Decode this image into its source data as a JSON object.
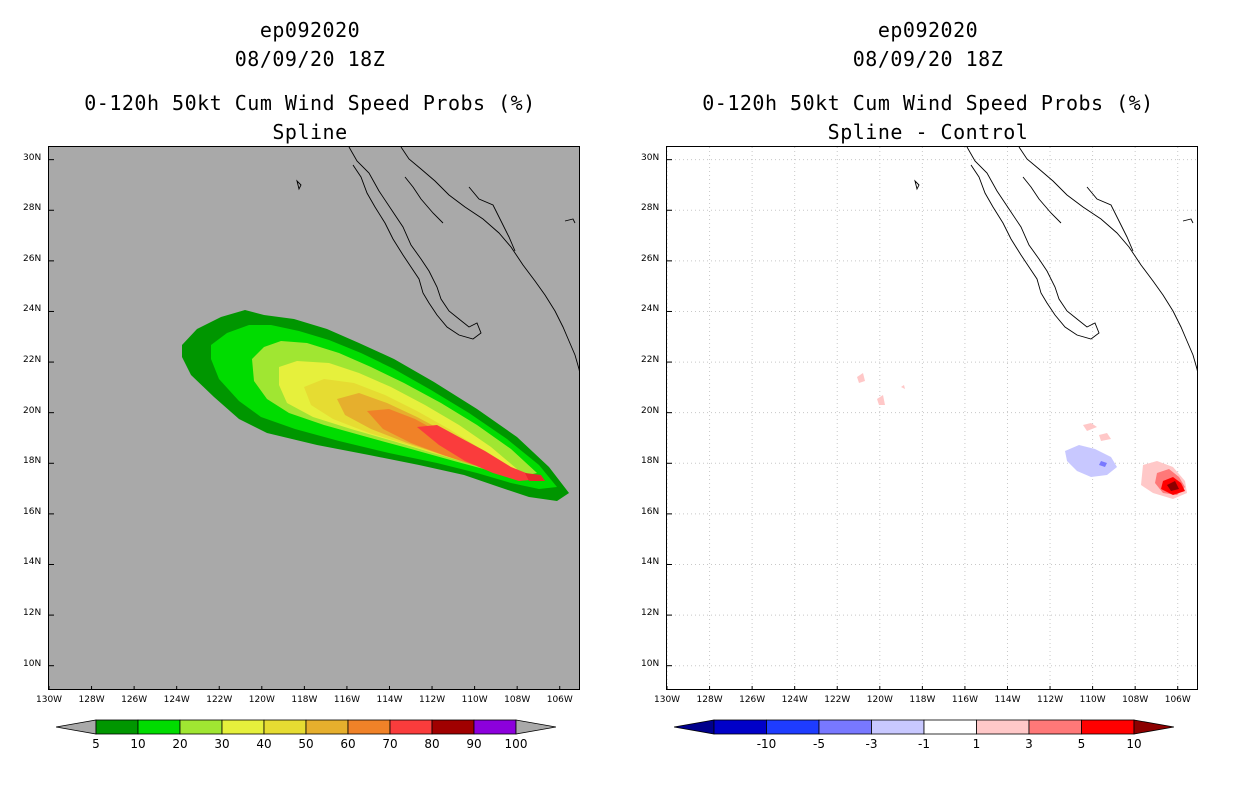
{
  "left": {
    "storm": "ep092020",
    "time": "08/09/20 18Z",
    "product": "0-120h 50kt Cum Wind Speed Probs (%)",
    "subtitle": "Spline",
    "background": "#a9a9a9",
    "legend": {
      "labels": [
        "5",
        "10",
        "20",
        "30",
        "40",
        "50",
        "60",
        "70",
        "80",
        "90",
        "100"
      ],
      "colors": [
        "#009600",
        "#00dc00",
        "#a0e632",
        "#e6f03c",
        "#e6dc32",
        "#e6af2d",
        "#f08228",
        "#fa3c3c",
        "#a00000",
        "#8c00dc"
      ],
      "end_color": "#a9a9a9"
    }
  },
  "right": {
    "storm": "ep092020",
    "time": "08/09/20 18Z",
    "product": "0-120h 50kt Cum Wind Speed Probs (%)",
    "subtitle": "Spline - Control",
    "background": "#ffffff",
    "legend": {
      "labels": [
        "-10",
        "-5",
        "-3",
        "-1",
        "1",
        "3",
        "5",
        "10"
      ],
      "colors": [
        "#0000c8",
        "#1e3cff",
        "#7878ff",
        "#c8c8ff",
        "#ffffff",
        "#ffc8c8",
        "#ff7878",
        "#ff0000"
      ],
      "low_color": "#00008c",
      "high_color": "#8c0000"
    }
  },
  "axes": {
    "lat_labels": [
      "30N",
      "28N",
      "26N",
      "24N",
      "22N",
      "20N",
      "18N",
      "16N",
      "14N",
      "12N",
      "10N"
    ],
    "lon_labels": [
      "130W",
      "128W",
      "126W",
      "124W",
      "122W",
      "120W",
      "118W",
      "116W",
      "114W",
      "112W",
      "110W",
      "108W",
      "106W"
    ],
    "lat_range": [
      9,
      30.5
    ],
    "lon_range": [
      -130,
      -105
    ]
  }
}
